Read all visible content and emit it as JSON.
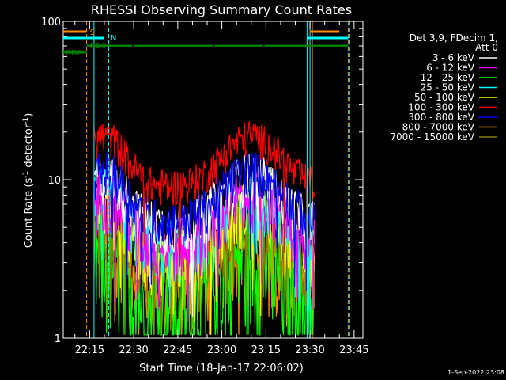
{
  "chart_data": {
    "type": "line",
    "title": "RHESSI Observing Summary Count Rates",
    "xlabel": "Start Time (18-Jan-17 22:06:02)",
    "ylabel_prefix": "Count Rate (s",
    "ylabel_exp1": "-1",
    "ylabel_mid": " detector",
    "ylabel_exp2": "-1",
    "ylabel_suffix": ")",
    "x_ticks": [
      "22:15",
      "22:30",
      "22:45",
      "23:00",
      "23:15",
      "23:30",
      "23:45"
    ],
    "x_tick_minutes": [
      15,
      30,
      45,
      60,
      75,
      90,
      105
    ],
    "x_range_minutes": [
      6.03,
      108
    ],
    "y_ticks": [
      "1",
      "10",
      "100"
    ],
    "y_tick_values": [
      1,
      10,
      100
    ],
    "ylim": [
      1,
      100
    ],
    "yscale": "log",
    "timestamp": "1-Sep-2022 23:08",
    "legend_header": [
      "Det 3,9, FDecim 1,",
      "Att 0"
    ],
    "series": [
      {
        "name": "3 - 6 keV",
        "color": "#ffffff",
        "base": 8,
        "noise": 0.25
      },
      {
        "name": "6 - 12 keV",
        "color": "#ff00ff",
        "base": 6,
        "noise": 0.3
      },
      {
        "name": "12 - 25 keV",
        "color": "#00ff00",
        "base": 2.5,
        "noise": 0.55
      },
      {
        "name": "25 - 50 keV",
        "color": "#00ffff",
        "base": 6,
        "noise": 0.3
      },
      {
        "name": "50 - 100 keV",
        "color": "#ffff00",
        "base": 5,
        "noise": 0.3
      },
      {
        "name": "100 - 300 keV",
        "color": "#ff0000",
        "base": 14,
        "noise": 0.18
      },
      {
        "name": "300 - 800 keV",
        "color": "#0000ff",
        "base": 8.5,
        "noise": 0.22
      },
      {
        "name": "800 - 7000 keV",
        "color": "#ff8c00",
        "base": 3.5,
        "noise": 0.4
      },
      {
        "name": "7000 - 15000 keV",
        "color": "#808000",
        "base": 4,
        "noise": 0.3
      }
    ],
    "data_window_minutes": [
      16.5,
      91.5
    ],
    "orbit_flags": [
      {
        "label": "S",
        "color": "#ff8c00",
        "segments": [
          [
            6.03,
            14
          ],
          [
            90,
            100
          ]
        ]
      },
      {
        "label": "N",
        "color": "#00ffff",
        "segments": [
          [
            6.03,
            20
          ],
          [
            89,
            103
          ]
        ]
      },
      {
        "label": "RD0",
        "color": "#008000",
        "segments": [
          [
            14,
            29.5
          ],
          [
            30,
            57
          ],
          [
            57.5,
            74
          ],
          [
            74.5,
            103
          ]
        ]
      },
      {
        "label": "RD6",
        "color": "#008000",
        "segments": [
          [
            6.03,
            14
          ]
        ]
      }
    ],
    "vertical_markers": [
      {
        "minute": 6.03,
        "color": "#00ffff",
        "dashed": false
      },
      {
        "minute": 14,
        "color": "#ff8c00",
        "dashed": true
      },
      {
        "minute": 16.5,
        "color": "#00ffff",
        "dashed": false
      },
      {
        "minute": 21.5,
        "color": "#00ffff",
        "dashed": true
      },
      {
        "minute": 89,
        "color": "#00ffff",
        "dashed": false
      },
      {
        "minute": 90,
        "color": "#00ffff",
        "dashed": false
      },
      {
        "minute": 90.8,
        "color": "#ff8c00",
        "dashed": false
      },
      {
        "minute": 103,
        "color": "#ff8c00",
        "dashed": true
      },
      {
        "minute": 103.5,
        "color": "#00ffff",
        "dashed": true
      }
    ]
  }
}
